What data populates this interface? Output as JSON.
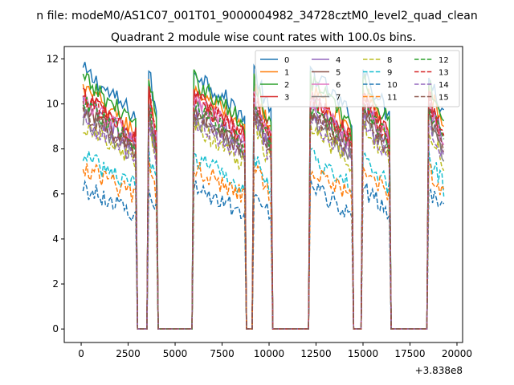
{
  "chart_data": {
    "type": "line",
    "suptitle": "n file: modeM0/AS1C07_001T01_9000004982_34728cztM0_level2_quad_clean",
    "title": "Quadrant 2 module wise count rates with 100.0s bins.",
    "xlabel": "",
    "ylabel": "",
    "x_offset_label": "+3.838e8",
    "xlim": [
      -900,
      20300
    ],
    "ylim": [
      -0.6,
      12.55
    ],
    "xticks": [
      0,
      2500,
      5000,
      7500,
      10000,
      12500,
      15000,
      17500,
      20000
    ],
    "yticks": [
      0,
      2,
      4,
      6,
      8,
      10,
      12
    ],
    "grid": false,
    "legend_position": "top-right",
    "legend_columns": 4,
    "bin_seconds": 100,
    "on_segments": [
      [
        100,
        2900
      ],
      [
        3600,
        4000
      ],
      [
        6000,
        8700
      ],
      [
        9200,
        10100
      ],
      [
        12200,
        14400
      ],
      [
        15000,
        16400
      ],
      [
        18500,
        19300
      ]
    ],
    "off_value": 0,
    "series": [
      {
        "name": "0",
        "color": "#1f77b4",
        "dash": "solid",
        "level": 11.5
      },
      {
        "name": "1",
        "color": "#ff7f0e",
        "dash": "solid",
        "level": 10.7
      },
      {
        "name": "2",
        "color": "#2ca02c",
        "dash": "solid",
        "level": 11.1
      },
      {
        "name": "3",
        "color": "#d62728",
        "dash": "solid",
        "level": 10.4
      },
      {
        "name": "4",
        "color": "#9467bd",
        "dash": "solid",
        "level": 10.0
      },
      {
        "name": "5",
        "color": "#8c564b",
        "dash": "solid",
        "level": 9.7
      },
      {
        "name": "6",
        "color": "#e377c2",
        "dash": "solid",
        "level": 10.2
      },
      {
        "name": "7",
        "color": "#7f7f7f",
        "dash": "solid",
        "level": 9.4
      },
      {
        "name": "8",
        "color": "#bcbd22",
        "dash": "dashed",
        "level": 9.0
      },
      {
        "name": "9",
        "color": "#17becf",
        "dash": "dashed",
        "level": 7.7
      },
      {
        "name": "10",
        "color": "#1f77b4",
        "dash": "dashed",
        "level": 6.3
      },
      {
        "name": "11",
        "color": "#ff7f0e",
        "dash": "dashed",
        "level": 7.2
      },
      {
        "name": "12",
        "color": "#2ca02c",
        "dash": "dashed",
        "level": 10.0
      },
      {
        "name": "13",
        "color": "#d62728",
        "dash": "dashed",
        "level": 10.3
      },
      {
        "name": "14",
        "color": "#9467bd",
        "dash": "dashed",
        "level": 9.3
      },
      {
        "name": "15",
        "color": "#8c564b",
        "dash": "dashed",
        "level": 9.7
      }
    ]
  }
}
